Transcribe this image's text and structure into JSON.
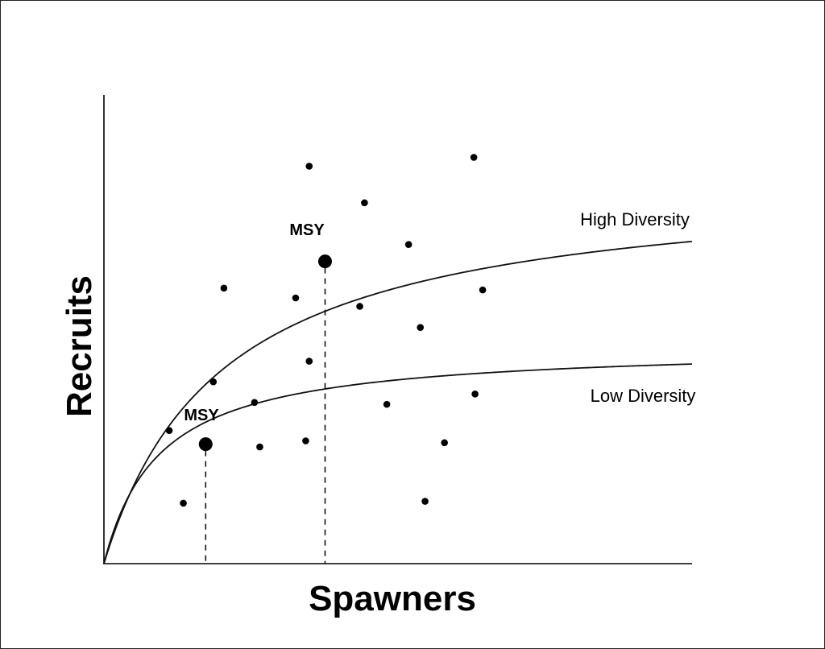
{
  "chart_data": {
    "type": "scatter",
    "xlabel": "Spawners",
    "ylabel": "Recruits",
    "xlim": [
      0,
      100
    ],
    "ylim": [
      0,
      100
    ],
    "grid": false,
    "ticks": false,
    "curves": [
      {
        "label": "High Diversity",
        "asymptote": 82.5,
        "half_saturation": 20,
        "msy": {
          "label": "MSY",
          "x": 37.6,
          "y": 64.5
        }
      },
      {
        "label": "Low Diversity",
        "asymptote": 46.6,
        "half_saturation": 9.4,
        "msy": {
          "label": "MSY",
          "x": 17.3,
          "y": 25.5
        }
      }
    ],
    "points": [
      {
        "x": 34.9,
        "y": 84.8
      },
      {
        "x": 62.9,
        "y": 86.7
      },
      {
        "x": 44.3,
        "y": 77.0
      },
      {
        "x": 51.8,
        "y": 68.1
      },
      {
        "x": 20.4,
        "y": 58.8
      },
      {
        "x": 32.6,
        "y": 56.7
      },
      {
        "x": 43.5,
        "y": 54.9
      },
      {
        "x": 64.4,
        "y": 58.4
      },
      {
        "x": 53.8,
        "y": 50.4
      },
      {
        "x": 34.9,
        "y": 43.2
      },
      {
        "x": 18.6,
        "y": 38.8
      },
      {
        "x": 25.6,
        "y": 34.4
      },
      {
        "x": 48.1,
        "y": 34.0
      },
      {
        "x": 63.1,
        "y": 36.2
      },
      {
        "x": 11.1,
        "y": 28.4
      },
      {
        "x": 26.5,
        "y": 24.9
      },
      {
        "x": 34.3,
        "y": 26.2
      },
      {
        "x": 57.9,
        "y": 25.8
      },
      {
        "x": 13.5,
        "y": 12.9
      },
      {
        "x": 54.6,
        "y": 13.3
      }
    ]
  }
}
